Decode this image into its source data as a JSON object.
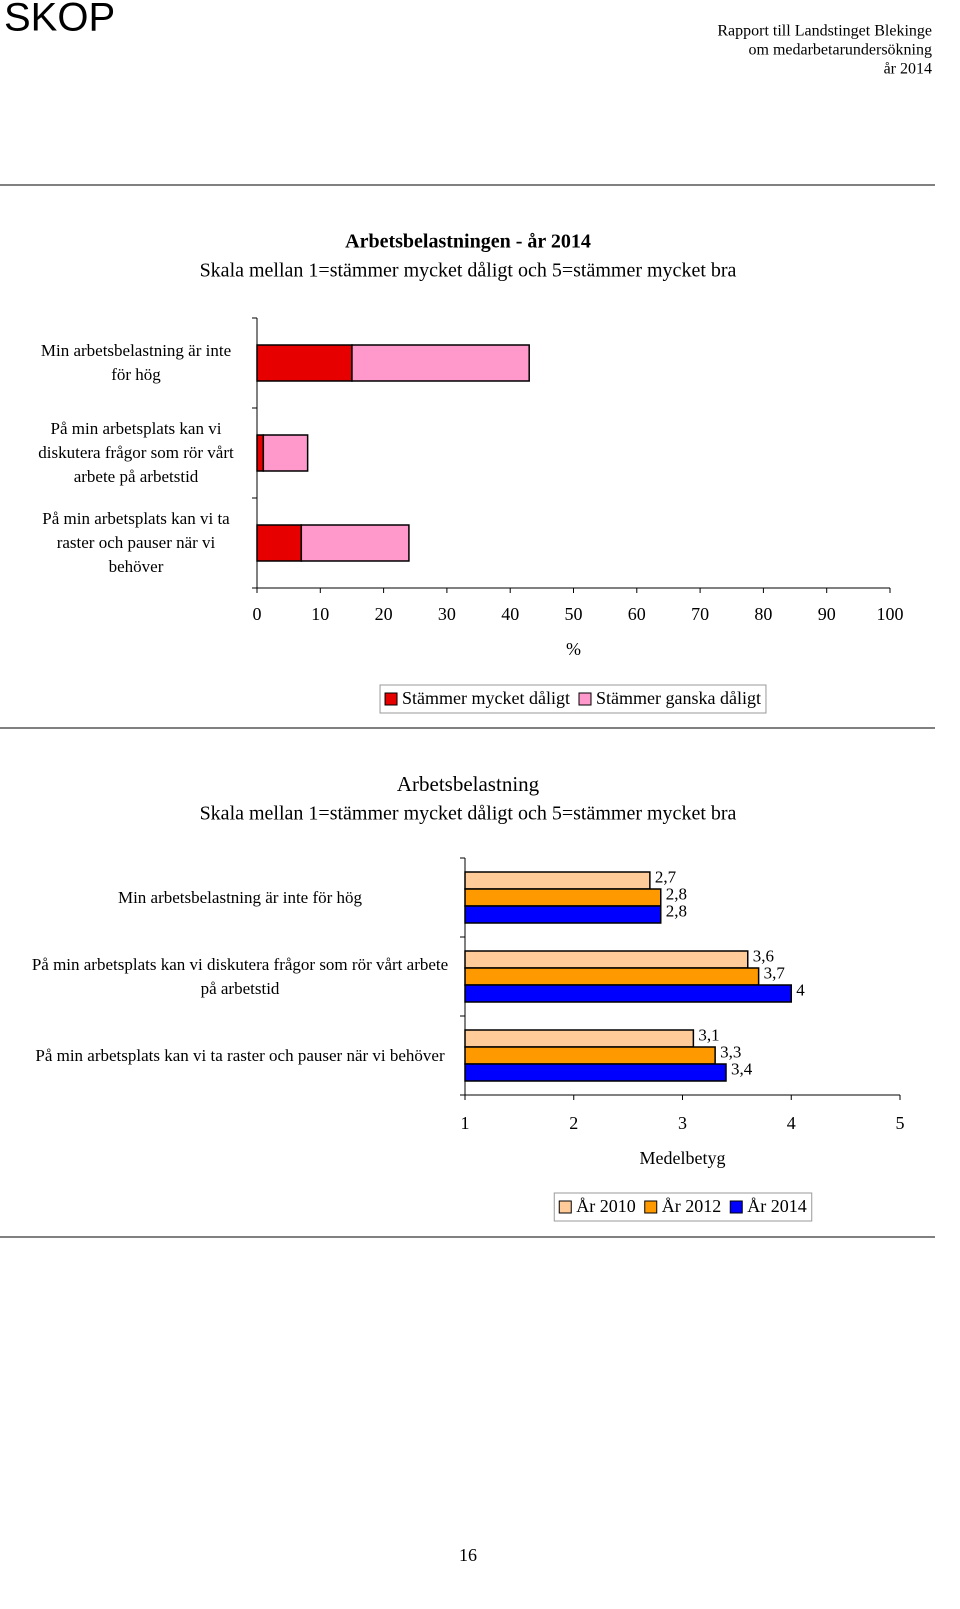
{
  "header": {
    "logo": "SKOP",
    "report_lines": [
      "Rapport till Landstinget Blekinge",
      "om medarbetarundersökning",
      "år 2014"
    ]
  },
  "chart_data": [
    {
      "type": "bar",
      "orientation": "horizontal",
      "stacked": true,
      "title": "Arbetsbelastningen - år 2014",
      "subtitle": "Skala mellan 1=stämmer mycket dåligt och 5=stämmer mycket bra",
      "categories": [
        "Min arbetsbelastning är inte för hög",
        "På min arbetsplats kan vi diskutera frågor som rör vårt arbete på arbetstid",
        "På min arbetsplats kan vi ta raster och pauser när vi behöver"
      ],
      "series": [
        {
          "name": "Stämmer mycket dåligt",
          "color": "#e60000",
          "values": [
            15,
            1,
            7
          ]
        },
        {
          "name": "Stämmer ganska dåligt",
          "color": "#ff99cc",
          "values": [
            28,
            7,
            17
          ]
        }
      ],
      "xlabel": "%",
      "xlim": [
        0,
        100
      ],
      "xticks": [
        0,
        10,
        20,
        30,
        40,
        50,
        60,
        70,
        80,
        90,
        100
      ],
      "grid": false,
      "legend": "bottom"
    },
    {
      "type": "bar",
      "orientation": "horizontal",
      "stacked": false,
      "title": "Arbetsbelastning",
      "subtitle": "Skala mellan 1=stämmer mycket dåligt och 5=stämmer mycket bra",
      "categories": [
        "Min arbetsbelastning är inte för hög",
        "På min arbetsplats kan vi diskutera frågor som rör vårt arbete på arbetstid",
        "På min arbetsplats kan vi ta raster och pauser när vi behöver"
      ],
      "series": [
        {
          "name": "År 2010",
          "color": "#ffcc99",
          "values": [
            2.7,
            3.6,
            3.1
          ],
          "value_labels": [
            "2,7",
            "3,6",
            "3,1"
          ]
        },
        {
          "name": "År 2012",
          "color": "#ff9900",
          "values": [
            2.8,
            3.7,
            3.3
          ],
          "value_labels": [
            "2,8",
            "3,7",
            "3,3"
          ]
        },
        {
          "name": "År 2014",
          "color": "#0000ff",
          "values": [
            2.8,
            4,
            3.4
          ],
          "value_labels": [
            "2,8",
            "4",
            "3,4"
          ]
        }
      ],
      "xlabel": "Medelbetyg",
      "xlim": [
        1,
        5
      ],
      "xticks": [
        1,
        2,
        3,
        4,
        5
      ],
      "grid": false,
      "legend": "bottom"
    }
  ],
  "page_number": "16"
}
